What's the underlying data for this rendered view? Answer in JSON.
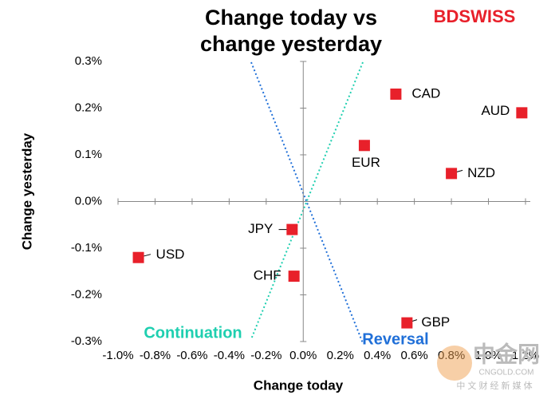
{
  "chart_data": {
    "type": "scatter",
    "title": "Change today vs change yesterday",
    "x_label": "Change today",
    "y_label": "Change yesterday",
    "color": "#e8202a",
    "points": [
      "CAD",
      "AUD",
      "EUR",
      "NZD",
      "JPY",
      "USD",
      "CHF",
      "GBP"
    ],
    "x": [
      0.5,
      1.18,
      0.33,
      0.8,
      -0.06,
      -0.89,
      -0.05,
      0.56
    ],
    "values": [
      0.23,
      0.19,
      0.12,
      0.06,
      -0.06,
      -0.12,
      -0.16,
      -0.26
    ],
    "xlim": [
      -1.0,
      1.2
    ],
    "xticks": [
      {
        "value": -1.0,
        "label": "-1.0%"
      },
      {
        "value": -0.8,
        "label": "-0.8%"
      },
      {
        "value": -0.6,
        "label": "-0.6%"
      },
      {
        "value": -0.4,
        "label": "-0.4%"
      },
      {
        "value": -0.2,
        "label": "-0.2%"
      },
      {
        "value": 0.0,
        "label": "0.0%"
      },
      {
        "value": 0.2,
        "label": "0.2%"
      },
      {
        "value": 0.4,
        "label": "0.4%"
      },
      {
        "value": 0.6,
        "label": "0.6%"
      },
      {
        "value": 0.8,
        "label": "0.8%"
      },
      {
        "value": 1.0,
        "label": "1.0%"
      },
      {
        "value": 1.2,
        "label": "1.2%"
      }
    ],
    "ylim": [
      -0.3,
      0.3
    ],
    "yticks": [
      {
        "value": 0.3,
        "label": "0.3%"
      },
      {
        "value": 0.2,
        "label": "0.2%"
      },
      {
        "value": 0.1,
        "label": "0.1%"
      },
      {
        "value": 0.0,
        "label": "0.0%"
      },
      {
        "value": -0.1,
        "label": "-0.1%"
      },
      {
        "value": -0.2,
        "label": "-0.2%"
      },
      {
        "value": -0.3,
        "label": "-0.3%"
      }
    ],
    "annotations": [
      "Continuation",
      "Reversal"
    ]
  },
  "logo": "BDSWISS",
  "watermark": [
    "中金网",
    "CNGOLD.COM",
    "中 文 财 经 新 媒 体"
  ]
}
